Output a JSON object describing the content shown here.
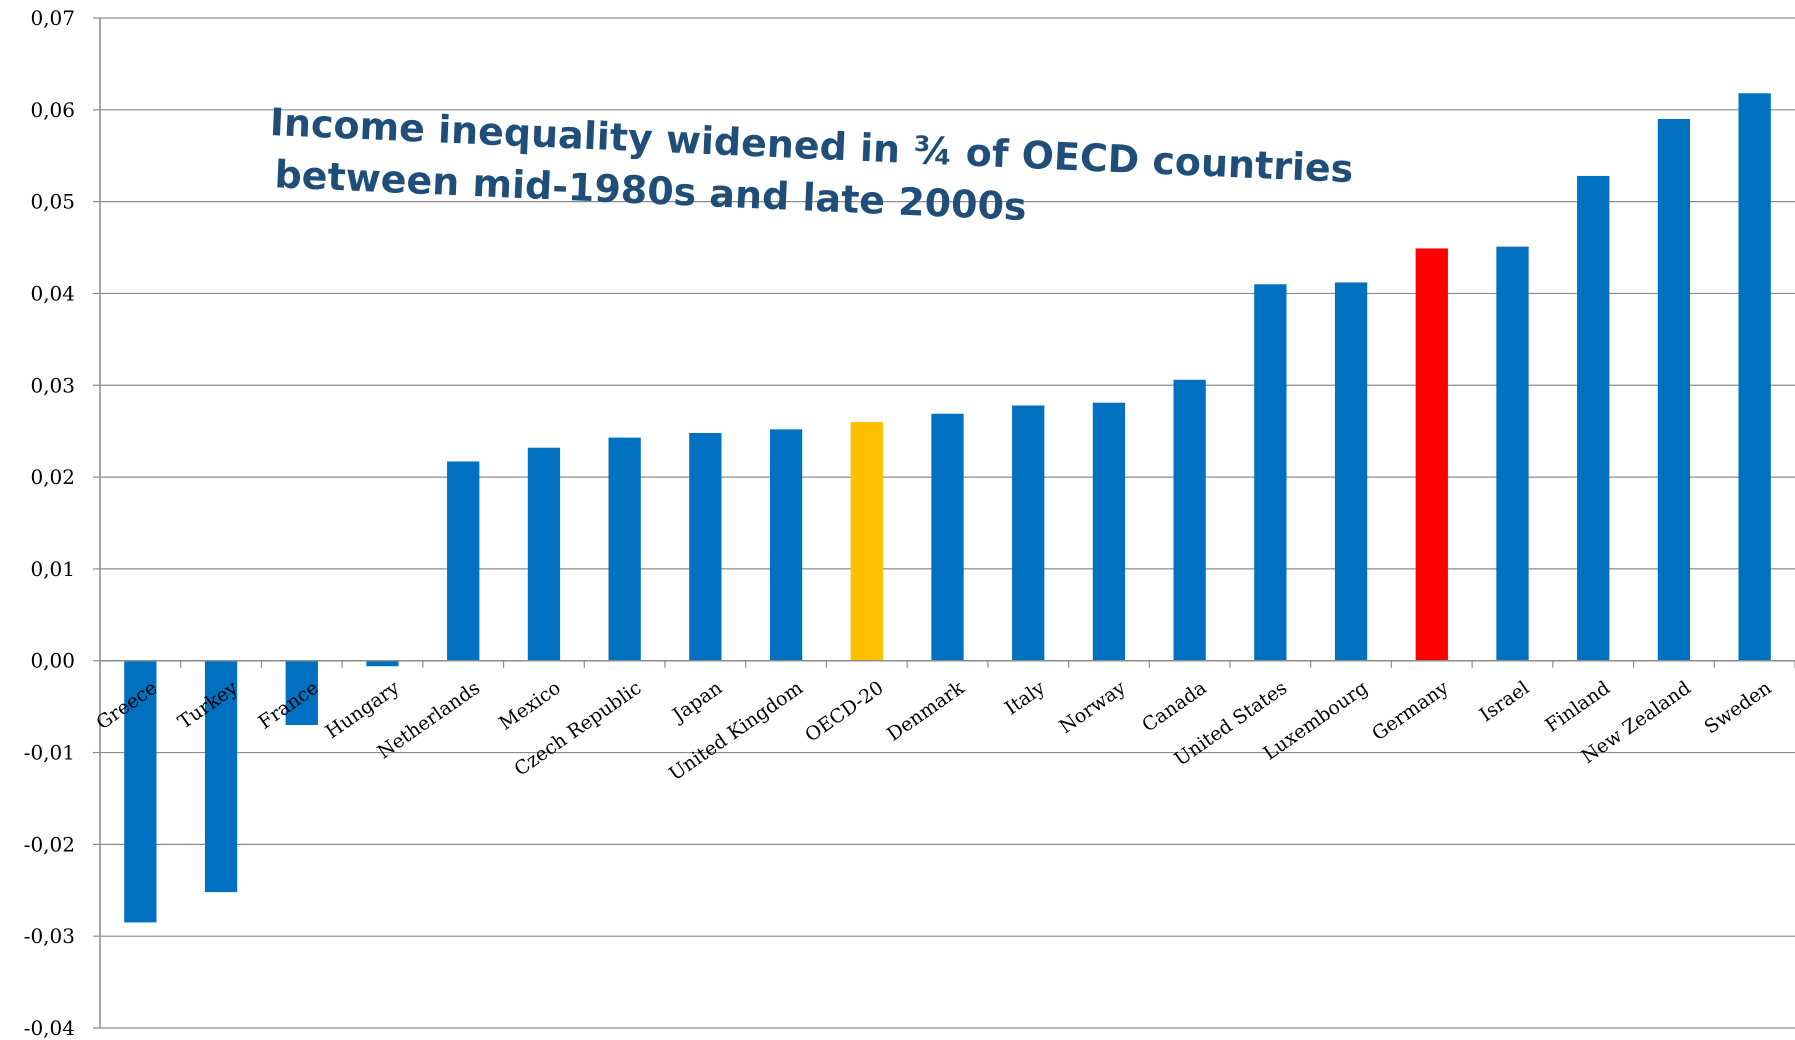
{
  "chart_data": {
    "type": "bar",
    "title": "",
    "xlabel": "",
    "ylabel": "",
    "ylim": [
      -0.04,
      0.07
    ],
    "y_ticks": [
      0.07,
      0.06,
      0.05,
      0.04,
      0.03,
      0.02,
      0.01,
      0.0,
      -0.01,
      -0.02,
      -0.03,
      -0.04
    ],
    "y_tick_labels": [
      "0,07",
      "0,06",
      "0,05",
      "0,04",
      "0,03",
      "0,02",
      "0,01",
      "0,00",
      "-0,01",
      "-0,02",
      "-0,03",
      "-0,04"
    ],
    "grid": true,
    "categories": [
      "Greece",
      "Turkey",
      "France",
      "Hungary",
      "Netherlands",
      "Mexico",
      "Czech Republic",
      "Japan",
      "United Kingdom",
      "OECD-20",
      "Denmark",
      "Italy",
      "Norway",
      "Canada",
      "United States",
      "Luxembourg",
      "Germany",
      "Israel",
      "Finland",
      "New Zealand",
      "Sweden"
    ],
    "values": [
      -0.0285,
      -0.0252,
      -0.007,
      -0.0006,
      0.0217,
      0.0232,
      0.0243,
      0.0248,
      0.0252,
      0.026,
      0.0269,
      0.0278,
      0.0281,
      0.0306,
      0.041,
      0.0412,
      0.0449,
      0.0451,
      0.0528,
      0.059,
      0.0618
    ],
    "bar_colors": [
      "#0070c0",
      "#0070c0",
      "#0070c0",
      "#0070c0",
      "#0070c0",
      "#0070c0",
      "#0070c0",
      "#0070c0",
      "#0070c0",
      "#ffc000",
      "#0070c0",
      "#0070c0",
      "#0070c0",
      "#0070c0",
      "#0070c0",
      "#0070c0",
      "#ff0000",
      "#0070c0",
      "#0070c0",
      "#0070c0",
      "#0070c0"
    ],
    "annotation": {
      "lines": [
        "Income inequality widened in ¾ of OECD countries",
        "between mid-1980s and late 2000s"
      ],
      "color": "#1f4e79"
    }
  }
}
